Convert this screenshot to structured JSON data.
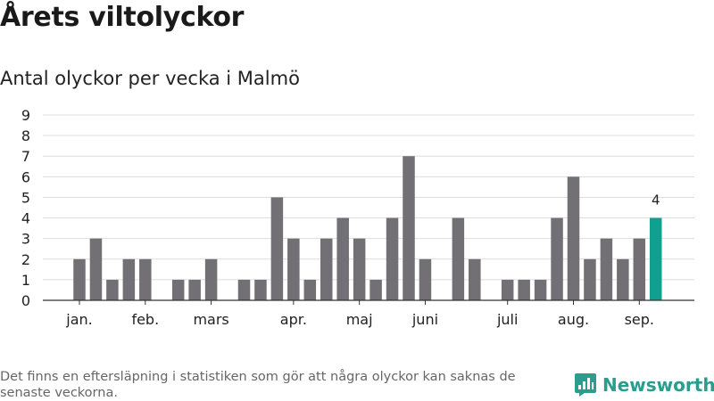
{
  "header": {
    "title": "Årets viltolyckor",
    "subtitle": "Antal olyckor per vecka i Malmö"
  },
  "footer": {
    "note": "Det finns en eftersläpning i statistiken som gör att några olyckor kan saknas de senaste veckorna.",
    "brand": "Newsworthy"
  },
  "colors": {
    "bar": "#727075",
    "highlight": "#0fa08f",
    "grid": "#dddddd",
    "brand": "#2a9d8f"
  },
  "chart_data": {
    "type": "bar",
    "title": "",
    "xlabel": "",
    "ylabel": "",
    "ylim": [
      0,
      9
    ],
    "yticks": [
      0,
      1,
      2,
      3,
      4,
      5,
      6,
      7,
      8,
      9
    ],
    "grid": true,
    "x_week_labels": [
      {
        "label": "jan.",
        "week": 1
      },
      {
        "label": "feb.",
        "week": 5
      },
      {
        "label": "mars",
        "week": 9
      },
      {
        "label": "apr.",
        "week": 14
      },
      {
        "label": "maj",
        "week": 18
      },
      {
        "label": "juni",
        "week": 22
      },
      {
        "label": "juli",
        "week": 27
      },
      {
        "label": "aug.",
        "week": 31
      },
      {
        "label": "sep.",
        "week": 35
      }
    ],
    "weeks": [
      1,
      2,
      3,
      4,
      5,
      6,
      7,
      8,
      9,
      10,
      11,
      12,
      13,
      14,
      15,
      16,
      17,
      18,
      19,
      20,
      21,
      22,
      23,
      24,
      25,
      26,
      27,
      28,
      29,
      30,
      31,
      32,
      33,
      34,
      35,
      36
    ],
    "values": [
      2,
      3,
      1,
      2,
      2,
      0,
      1,
      1,
      2,
      0,
      1,
      1,
      5,
      3,
      1,
      3,
      4,
      3,
      1,
      4,
      7,
      2,
      0,
      4,
      2,
      0,
      1,
      1,
      1,
      4,
      6,
      2,
      3,
      2,
      3,
      4
    ],
    "highlight_index": 35,
    "data_labels": [
      {
        "index": 35,
        "text": "4"
      }
    ]
  }
}
